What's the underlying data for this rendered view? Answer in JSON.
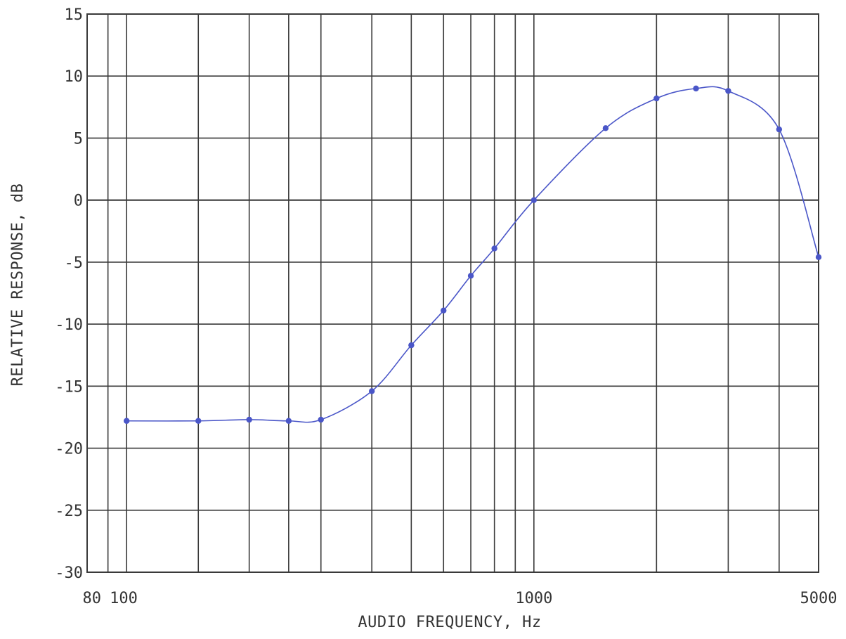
{
  "chart_data": {
    "type": "line",
    "xlabel": "AUDIO FREQUENCY, Hz",
    "ylabel": "RELATIVE RESPONSE, dB",
    "x_scale": "log",
    "xlim": [
      80,
      5000
    ],
    "ylim": [
      -30,
      15
    ],
    "grid": true,
    "x_tick_labels": [
      {
        "value": 80,
        "label": "80"
      },
      {
        "value": 100,
        "label": "100"
      },
      {
        "value": 1000,
        "label": "1000"
      },
      {
        "value": 5000,
        "label": "5000"
      }
    ],
    "x_gridlines": [
      80,
      90,
      100,
      150,
      200,
      250,
      300,
      400,
      500,
      600,
      700,
      800,
      900,
      1000,
      2000,
      3000,
      4000,
      5000
    ],
    "y_ticks": [
      15,
      10,
      5,
      0,
      -5,
      -10,
      -15,
      -20,
      -25,
      -30
    ],
    "y_tick_labels": [
      "15",
      "10",
      "5",
      "0",
      "-5",
      "-10",
      "-15",
      "-20",
      "-25",
      "-30"
    ],
    "series": [
      {
        "color": "#4a56c8",
        "x": [
          100,
          150,
          200,
          250,
          300,
          400,
          500,
          600,
          700,
          800,
          1000,
          1500,
          2000,
          2500,
          3000,
          4000,
          5000
        ],
        "y": [
          -17.8,
          -17.8,
          -17.7,
          -17.8,
          -17.7,
          -15.4,
          -11.7,
          -8.9,
          -6.1,
          -3.9,
          0.0,
          5.8,
          8.2,
          9.0,
          8.8,
          5.7,
          -4.6
        ]
      }
    ]
  }
}
